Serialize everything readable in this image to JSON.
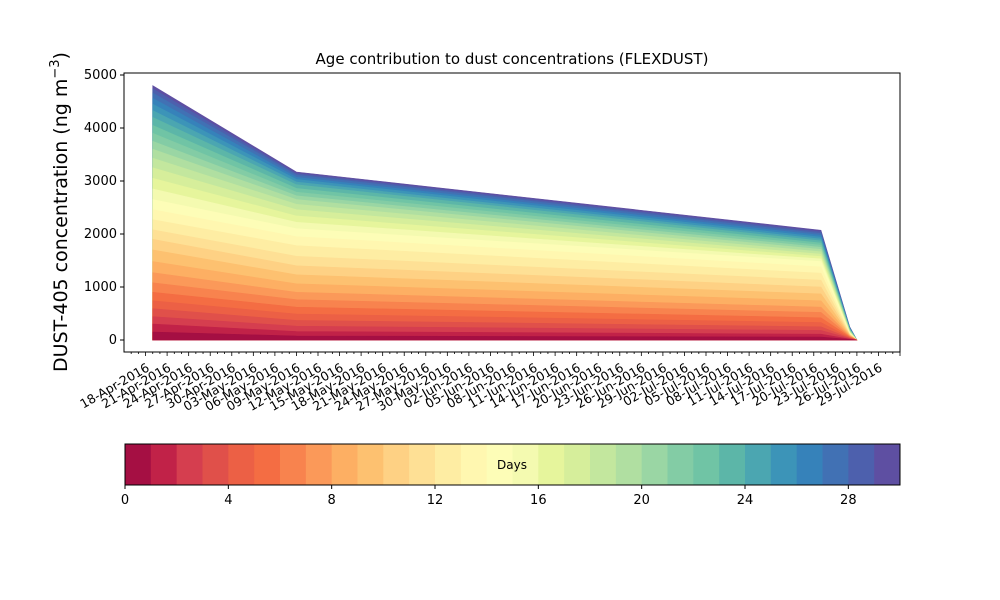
{
  "chart_data": {
    "type": "area",
    "stacked": true,
    "title": "Age contribution to dust concentrations (FLEXDUST)",
    "ylabel": "DUST-405 concentration (ng m",
    "ylabel_superscript": "−3",
    "ylabel_close": ")",
    "xlabel": "",
    "ylim": [
      0,
      5000
    ],
    "yticks": [
      0,
      1000,
      2000,
      3000,
      4000,
      5000
    ],
    "xlim": [
      "2016-04-15",
      "2016-08-01"
    ],
    "x_tick_labels": [
      "18-Apr-2016",
      "21-Apr-2016",
      "24-Apr-2016",
      "27-Apr-2016",
      "30-Apr-2016",
      "03-May-2016",
      "06-May-2016",
      "09-May-2016",
      "12-May-2016",
      "15-May-2016",
      "18-May-2016",
      "21-May-2016",
      "24-May-2016",
      "27-May-2016",
      "30-May-2016",
      "02-Jun-2016",
      "05-Jun-2016",
      "08-Jun-2016",
      "11-Jun-2016",
      "14-Jun-2016",
      "17-Jun-2016",
      "20-Jun-2016",
      "23-Jun-2016",
      "26-Jun-2016",
      "29-Jun-2016",
      "02-Jul-2016",
      "05-Jul-2016",
      "08-Jul-2016",
      "11-Jul-2016",
      "14-Jul-2016",
      "17-Jul-2016",
      "20-Jul-2016",
      "23-Jul-2016",
      "26-Jul-2016",
      "29-Jul-2016"
    ],
    "x": [
      "2016-04-19",
      "2016-05-09",
      "2016-07-21",
      "2016-07-25",
      "2016-07-26"
    ],
    "age_bins_days": [
      0,
      1,
      2,
      3,
      4,
      5,
      6,
      7,
      8,
      9,
      10,
      11,
      12,
      13,
      14,
      15,
      16,
      17,
      18,
      19,
      20,
      21,
      22,
      23,
      24,
      25,
      26,
      27,
      28,
      29
    ],
    "cumulative_boundaries": [
      [
        4800,
        3170,
        2070,
        250,
        0
      ],
      [
        4740,
        3140,
        2040,
        240,
        0
      ],
      [
        4660,
        3110,
        2010,
        235,
        0
      ],
      [
        4560,
        3070,
        1975,
        228,
        0
      ],
      [
        4450,
        3030,
        1940,
        220,
        0
      ],
      [
        4330,
        2980,
        1905,
        213,
        0
      ],
      [
        4200,
        2930,
        1870,
        205,
        0
      ],
      [
        4050,
        2860,
        1830,
        197,
        0
      ],
      [
        3900,
        2790,
        1790,
        189,
        0
      ],
      [
        3750,
        2720,
        1750,
        180,
        0
      ],
      [
        3600,
        2650,
        1710,
        172,
        0
      ],
      [
        3430,
        2560,
        1665,
        163,
        0
      ],
      [
        3250,
        2460,
        1620,
        155,
        0
      ],
      [
        3050,
        2340,
        1575,
        146,
        0
      ],
      [
        2850,
        2220,
        1530,
        138,
        0
      ],
      [
        2650,
        2100,
        1480,
        130,
        0
      ],
      [
        2460,
        1950,
        1380,
        122,
        0
      ],
      [
        2270,
        1780,
        1260,
        114,
        0
      ],
      [
        2080,
        1580,
        1130,
        106,
        0
      ],
      [
        1900,
        1400,
        1000,
        98,
        0
      ],
      [
        1700,
        1230,
        870,
        90,
        0
      ],
      [
        1480,
        1060,
        740,
        82,
        0
      ],
      [
        1270,
        900,
        620,
        74,
        0
      ],
      [
        1080,
        760,
        520,
        65,
        0
      ],
      [
        900,
        620,
        420,
        56,
        0
      ],
      [
        740,
        490,
        330,
        47,
        0
      ],
      [
        590,
        370,
        250,
        38,
        0
      ],
      [
        440,
        260,
        180,
        29,
        0
      ],
      [
        300,
        160,
        110,
        19,
        0
      ],
      [
        150,
        75,
        55,
        10,
        0
      ]
    ],
    "colorbar": {
      "label": "Days",
      "min": 0,
      "max": 30,
      "ticks": [
        0,
        4,
        8,
        12,
        16,
        20,
        24,
        28
      ],
      "colors": [
        "#a50f43",
        "#c12248",
        "#d53e4f",
        "#e0504a",
        "#ec6045",
        "#f46d43",
        "#f8834e",
        "#fb9959",
        "#fdaf63",
        "#fdc170",
        "#fed184",
        "#fee095",
        "#feeda3",
        "#fff7b0",
        "#fdfdb7",
        "#f4fab0",
        "#e6f59c",
        "#d6ee9b",
        "#c3e79e",
        "#b0dfa1",
        "#9ad6a4",
        "#83cca5",
        "#70c4a5",
        "#5cb6a8",
        "#4ba6b1",
        "#3c94b8",
        "#3682ba",
        "#4171b4",
        "#4d60ad",
        "#5e4fa2"
      ]
    }
  }
}
